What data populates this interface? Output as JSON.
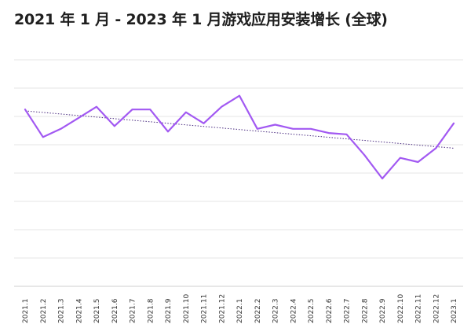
{
  "title": "2021 年 1 月 - 2023 年 1 月游戏应用安装增长 (全球)",
  "colors": {
    "line": "#a259f2",
    "trend": "#4a2c80",
    "grid": "#e6e6e6"
  },
  "chart_data": {
    "type": "line",
    "title": "2021 年 1 月 - 2023 年 1 月游戏应用安装增长 (全球)",
    "xlabel": "",
    "ylabel": "",
    "categories": [
      "2021.1",
      "2021.2",
      "2021.3",
      "2021.4",
      "2021.5",
      "2021.6",
      "2021.7",
      "2021.8",
      "2021.9",
      "2021.10",
      "2021.11",
      "2021.12",
      "2022.1",
      "2022.2",
      "2022.3",
      "2022.4",
      "2022.5",
      "2022.6",
      "2022.7",
      "2022.8",
      "2022.9",
      "2022.10",
      "2022.11",
      "2022.12",
      "2023.1"
    ],
    "series": [
      {
        "values": [
          6.4,
          5.4,
          5.7,
          6.1,
          6.5,
          5.8,
          6.4,
          6.4,
          5.6,
          6.3,
          5.9,
          6.5,
          6.9,
          5.7,
          5.85,
          5.7,
          5.7,
          5.55,
          5.5,
          4.75,
          3.9,
          4.65,
          4.5,
          5.0,
          5.9
        ]
      }
    ],
    "trendline": {
      "type": "linear",
      "style": "dotted",
      "start": 6.35,
      "end": 5.0
    },
    "ylim": [
      0,
      8.2
    ],
    "grid": true,
    "y_tick_labels_visible": false,
    "legend": "none"
  }
}
